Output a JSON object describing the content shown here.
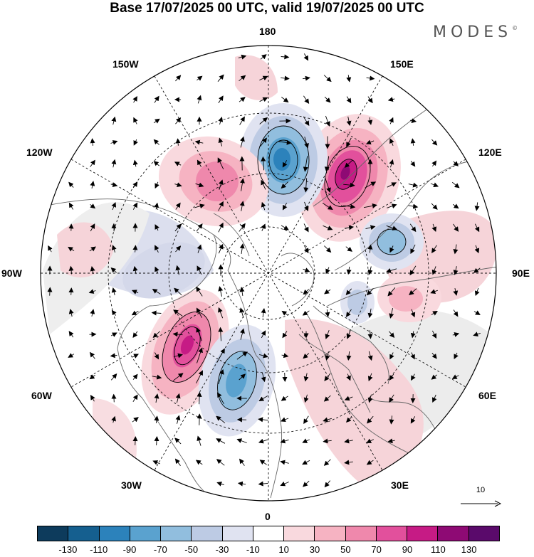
{
  "title": "Base 17/07/2025 00 UTC, valid 19/07/2025 00 UTC",
  "brand": "MODES",
  "brand_mark": "©",
  "longitude_labels": {
    "lon_180": "180",
    "lon_150W": "150W",
    "lon_150E": "150E",
    "lon_120W": "120W",
    "lon_120E": "120E",
    "lon_90W": "90W",
    "lon_90E": "90E",
    "lon_60W": "60W",
    "lon_60E": "60E",
    "lon_30W": "30W",
    "lon_30E": "30E",
    "lon_0": "0"
  },
  "reference_vector": {
    "label": "10"
  },
  "colorbar": {
    "colors": [
      "#0d3b5c",
      "#155f8f",
      "#2c82bb",
      "#5aa2cf",
      "#91bede",
      "#bdcbe4",
      "#e0e3f1",
      "#ffffff",
      "#f9d9de",
      "#f6b3c2",
      "#ef88ac",
      "#e2509c",
      "#c61b85",
      "#8e0a74",
      "#5a0a6b"
    ],
    "tick_labels": [
      "-130",
      "-110",
      "-90",
      "-70",
      "-50",
      "-30",
      "-10",
      "10",
      "30",
      "50",
      "70",
      "90",
      "110",
      "130"
    ]
  },
  "map": {
    "projection": "north polar stereographic",
    "anomalies": [
      {
        "name": "180-side-low",
        "value": -110
      },
      {
        "name": "150E-high",
        "value": 130
      },
      {
        "name": "130W-high",
        "value": 70
      },
      {
        "name": "105E-low",
        "value": -70
      },
      {
        "name": "60W-high",
        "value": 110
      },
      {
        "name": "40W-low",
        "value": -90
      },
      {
        "name": "80E-high",
        "value": 30
      }
    ]
  }
}
